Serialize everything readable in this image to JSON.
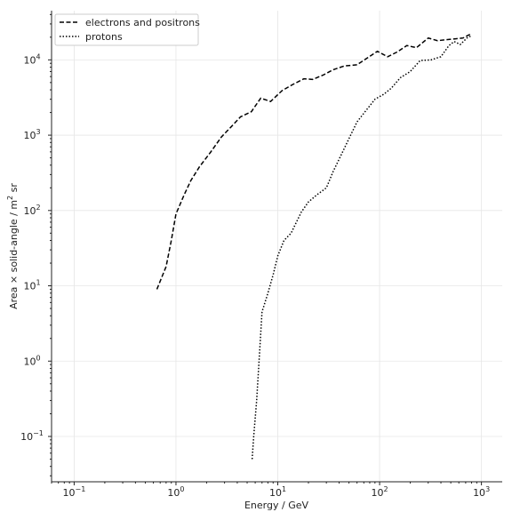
{
  "chart_data": {
    "type": "line",
    "xlabel": "Energy / GeV",
    "ylabel_parts": [
      "Area × solid-angle / m",
      "2",
      " sr"
    ],
    "xscale": "log",
    "yscale": "log",
    "xlim": [
      0.06,
      1600
    ],
    "ylim": [
      0.025,
      45000
    ],
    "grid": true,
    "legend_position": "top-left",
    "x_tick_labels": [
      {
        "value": 0.1,
        "base": "10",
        "exp": "−1"
      },
      {
        "value": 1,
        "base": "10",
        "exp": "0"
      },
      {
        "value": 10,
        "base": "10",
        "exp": "1"
      },
      {
        "value": 100,
        "base": "10",
        "exp": "2"
      },
      {
        "value": 1000,
        "base": "10",
        "exp": "3"
      }
    ],
    "y_tick_labels": [
      {
        "value": 0.1,
        "base": "10",
        "exp": "−1"
      },
      {
        "value": 1,
        "base": "10",
        "exp": "0"
      },
      {
        "value": 10,
        "base": "10",
        "exp": "1"
      },
      {
        "value": 100,
        "base": "10",
        "exp": "2"
      },
      {
        "value": 1000,
        "base": "10",
        "exp": "3"
      },
      {
        "value": 10000,
        "base": "10",
        "exp": "4"
      }
    ],
    "series": [
      {
        "name": "electrons and positrons",
        "style": "dashed",
        "color": "#000000",
        "points": [
          [
            0.65,
            9
          ],
          [
            0.8,
            18
          ],
          [
            0.9,
            40
          ],
          [
            1.0,
            90
          ],
          [
            1.2,
            160
          ],
          [
            1.4,
            250
          ],
          [
            1.7,
            380
          ],
          [
            2.2,
            600
          ],
          [
            2.8,
            950
          ],
          [
            3.5,
            1300
          ],
          [
            4.3,
            1750
          ],
          [
            5.5,
            2050
          ],
          [
            6.8,
            3100
          ],
          [
            8.5,
            2800
          ],
          [
            11,
            3900
          ],
          [
            14,
            4700
          ],
          [
            18,
            5600
          ],
          [
            22,
            5500
          ],
          [
            28,
            6300
          ],
          [
            35,
            7400
          ],
          [
            45,
            8300
          ],
          [
            60,
            8600
          ],
          [
            75,
            10500
          ],
          [
            95,
            13000
          ],
          [
            120,
            11000
          ],
          [
            150,
            12800
          ],
          [
            185,
            15500
          ],
          [
            230,
            14500
          ],
          [
            300,
            19500
          ],
          [
            370,
            18000
          ],
          [
            450,
            18500
          ],
          [
            550,
            19000
          ],
          [
            660,
            19500
          ],
          [
            780,
            22000
          ]
        ]
      },
      {
        "name": "protons",
        "style": "dotted",
        "color": "#000000",
        "points": [
          [
            5.6,
            0.05
          ],
          [
            5.8,
            0.1
          ],
          [
            6.2,
            0.3
          ],
          [
            6.6,
            1.2
          ],
          [
            7.0,
            4.5
          ],
          [
            8.0,
            8.0
          ],
          [
            9.0,
            14
          ],
          [
            10,
            25
          ],
          [
            11.5,
            40
          ],
          [
            13.5,
            50
          ],
          [
            17,
            95
          ],
          [
            20,
            130
          ],
          [
            24,
            160
          ],
          [
            30,
            200
          ],
          [
            35,
            330
          ],
          [
            42,
            550
          ],
          [
            50,
            900
          ],
          [
            60,
            1500
          ],
          [
            75,
            2200
          ],
          [
            90,
            3000
          ],
          [
            110,
            3500
          ],
          [
            130,
            4200
          ],
          [
            160,
            5800
          ],
          [
            200,
            7000
          ],
          [
            250,
            9800
          ],
          [
            320,
            10000
          ],
          [
            400,
            11000
          ],
          [
            480,
            15500
          ],
          [
            540,
            17500
          ],
          [
            620,
            16000
          ],
          [
            720,
            19500
          ],
          [
            800,
            21000
          ]
        ]
      }
    ]
  }
}
